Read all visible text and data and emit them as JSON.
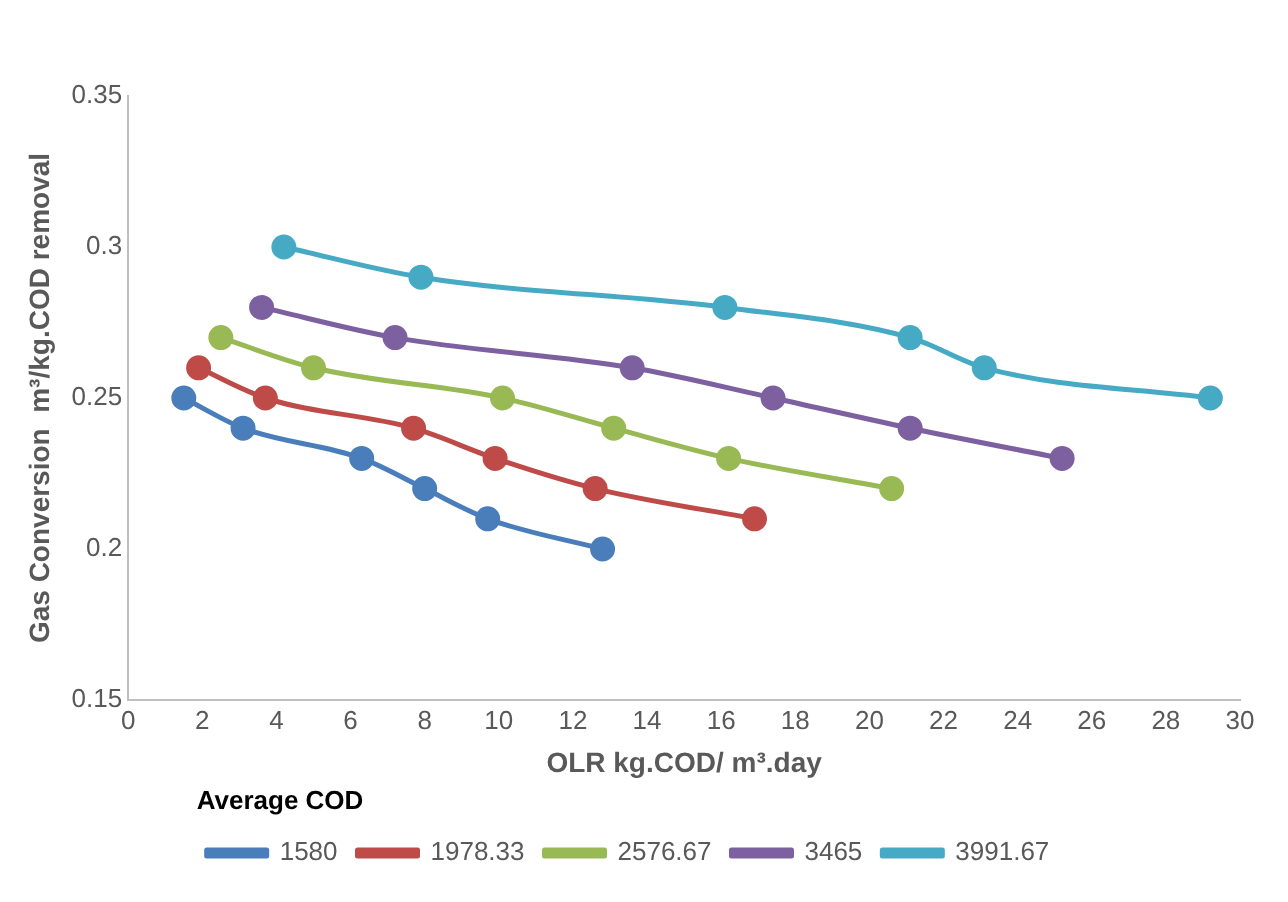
{
  "chart_data": {
    "type": "line",
    "xlabel": "OLR kg.COD/ m³.day",
    "ylabel": "Gas Conversion  m³/kg.COD removal",
    "legend_title": "Average COD",
    "xlim": [
      0,
      30
    ],
    "xticks": [
      0,
      2,
      4,
      6,
      8,
      10,
      12,
      14,
      16,
      18,
      20,
      22,
      24,
      26,
      28,
      30
    ],
    "ylim": [
      0.15,
      0.35
    ],
    "yticks": [
      0.15,
      0.2,
      0.25,
      0.3,
      0.35
    ],
    "grid": false,
    "legend": "bottom",
    "marker": "circle",
    "line_style": "solid",
    "series": [
      {
        "name": "1580",
        "color": "#4a7ebb",
        "x": [
          1.5,
          3.1,
          6.3,
          8.0,
          9.7,
          12.8
        ],
        "values": [
          0.25,
          0.24,
          0.23,
          0.22,
          0.21,
          0.2
        ]
      },
      {
        "name": "1978.33",
        "color": "#be4b48",
        "x": [
          1.9,
          3.7,
          7.7,
          9.9,
          12.6,
          16.9
        ],
        "values": [
          0.26,
          0.25,
          0.24,
          0.23,
          0.22,
          0.21
        ]
      },
      {
        "name": "2576.67",
        "color": "#98b954",
        "x": [
          2.5,
          5.0,
          10.1,
          13.1,
          16.2,
          20.6
        ],
        "values": [
          0.27,
          0.26,
          0.25,
          0.24,
          0.23,
          0.22
        ]
      },
      {
        "name": "3465",
        "color": "#7d60a0",
        "x": [
          3.6,
          7.2,
          13.6,
          17.4,
          21.1,
          25.2
        ],
        "values": [
          0.28,
          0.27,
          0.26,
          0.25,
          0.24,
          0.23
        ]
      },
      {
        "name": "3991.67",
        "color": "#46aac5",
        "x": [
          4.2,
          7.9,
          16.1,
          21.1,
          23.1,
          29.2
        ],
        "values": [
          0.3,
          0.29,
          0.28,
          0.27,
          0.26,
          0.25
        ]
      }
    ]
  }
}
